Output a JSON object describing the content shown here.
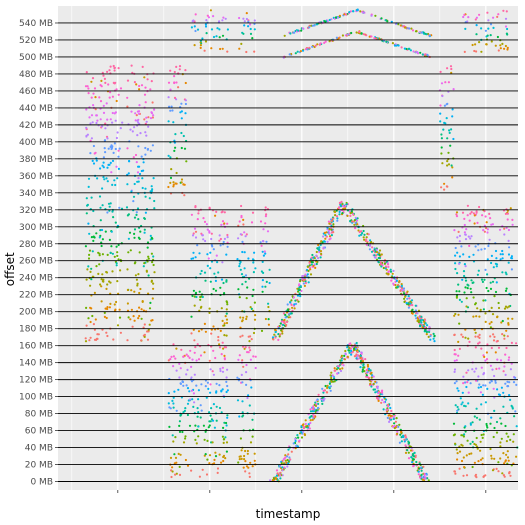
{
  "chart_data": {
    "type": "scatter",
    "title": "",
    "xlabel": "timestamp",
    "ylabel": "offset",
    "y_unit": "MB",
    "ylim": [
      -10,
      560
    ],
    "x_tick_labels": [],
    "y_ticks": [
      0,
      20,
      40,
      60,
      80,
      100,
      120,
      140,
      160,
      180,
      200,
      220,
      240,
      260,
      280,
      300,
      320,
      340,
      360,
      380,
      400,
      420,
      440,
      460,
      480,
      500,
      520,
      540
    ],
    "y_tick_labels": [
      "0 MB",
      "20 MB",
      "40 MB",
      "60 MB",
      "80 MB",
      "100 MB",
      "120 MB",
      "140 MB",
      "160 MB",
      "180 MB",
      "200 MB",
      "220 MB",
      "240 MB",
      "260 MB",
      "280 MB",
      "300 MB",
      "320 MB",
      "340 MB",
      "360 MB",
      "380 MB",
      "400 MB",
      "420 MB",
      "440 MB",
      "460 MB",
      "480 MB",
      "500 MB",
      "520 MB",
      "540 MB"
    ],
    "grid": true,
    "background": "#ebebeb",
    "legend": "none",
    "horizontal_reference_lines": true,
    "series_colors": [
      "#f8766d",
      "#e58700",
      "#c99800",
      "#a3a500",
      "#6bb100",
      "#00ba38",
      "#00bf7d",
      "#00c0af",
      "#00bcd8",
      "#00b0f6",
      "#619cff",
      "#b983ff",
      "#e76bf3",
      "#fd61d1",
      "#ff67a4"
    ],
    "regions": [
      {
        "kind": "column",
        "x": [
          0.06,
          0.14
        ],
        "y": [
          165,
          490
        ]
      },
      {
        "kind": "column",
        "x": [
          0.15,
          0.21
        ],
        "y": [
          165,
          490
        ]
      },
      {
        "kind": "column",
        "x": [
          0.24,
          0.28
        ],
        "y": [
          330,
          490
        ]
      },
      {
        "kind": "column",
        "x": [
          0.24,
          0.29
        ],
        "y": [
          5,
          165
        ]
      },
      {
        "kind": "column",
        "x": [
          0.29,
          0.37
        ],
        "y": [
          505,
          555
        ]
      },
      {
        "kind": "column",
        "x": [
          0.29,
          0.37
        ],
        "y": [
          165,
          325
        ]
      },
      {
        "kind": "column",
        "x": [
          0.29,
          0.37
        ],
        "y": [
          5,
          165
        ]
      },
      {
        "kind": "column",
        "x": [
          0.39,
          0.43
        ],
        "y": [
          505,
          555
        ]
      },
      {
        "kind": "column",
        "x": [
          0.39,
          0.43
        ],
        "y": [
          165,
          325
        ]
      },
      {
        "kind": "column",
        "x": [
          0.39,
          0.43
        ],
        "y": [
          5,
          165
        ]
      },
      {
        "kind": "column",
        "x": [
          0.44,
          0.46
        ],
        "y": [
          165,
          325
        ]
      },
      {
        "kind": "column",
        "x": [
          0.83,
          0.86
        ],
        "y": [
          340,
          490
        ]
      },
      {
        "kind": "column",
        "x": [
          0.86,
          0.88
        ],
        "y": [
          165,
          325
        ]
      },
      {
        "kind": "column",
        "x": [
          0.86,
          0.96
        ],
        "y": [
          5,
          165
        ]
      },
      {
        "kind": "column",
        "x": [
          0.88,
          0.96
        ],
        "y": [
          165,
          325
        ]
      },
      {
        "kind": "column",
        "x": [
          0.88,
          0.98
        ],
        "y": [
          505,
          555
        ]
      },
      {
        "kind": "column",
        "x": [
          0.96,
          1.0
        ],
        "y": [
          5,
          165
        ]
      },
      {
        "kind": "column",
        "x": [
          0.96,
          0.99
        ],
        "y": [
          165,
          325
        ]
      },
      {
        "kind": "ramp",
        "x0": 0.47,
        "y0": 165,
        "xm": 0.62,
        "ym": 328,
        "x1": 0.82,
        "y1": 165
      },
      {
        "kind": "ramp",
        "x0": 0.47,
        "y0": 0,
        "xm": 0.64,
        "ym": 162,
        "x1": 0.8,
        "y1": 0
      },
      {
        "kind": "thinramp",
        "x0": 0.49,
        "y0": 525,
        "xm": 0.65,
        "ym": 555,
        "x1": 0.81,
        "y1": 525
      },
      {
        "kind": "thinramp",
        "x0": 0.49,
        "y0": 500,
        "xm": 0.65,
        "ym": 530,
        "x1": 0.81,
        "y1": 500
      }
    ]
  }
}
